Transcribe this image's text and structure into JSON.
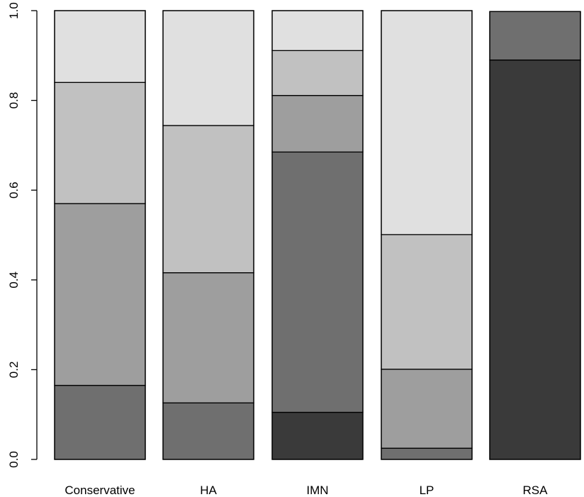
{
  "chart_data": {
    "type": "bar",
    "stacked": true,
    "categories": [
      "Conservative",
      "HA",
      "IMN",
      "LP",
      "RSA"
    ],
    "ylim": [
      0,
      1.0
    ],
    "yticks": [
      "0.0",
      "0.2",
      "0.4",
      "0.6",
      "0.8",
      "1.0"
    ],
    "ytick_values": [
      0.0,
      0.2,
      0.4,
      0.6,
      0.8,
      1.0
    ],
    "grid": false,
    "legend": "none",
    "segment_colors": [
      "#3a3a3a",
      "#6f6f6f",
      "#9e9e9e",
      "#c1c1c1",
      "#e0e0e0"
    ],
    "series": [
      {
        "values": [
          0.0,
          0.0,
          0.105,
          0.0,
          0.89
        ]
      },
      {
        "values": [
          0.165,
          0.126,
          0.58,
          0.025,
          0.108
        ]
      },
      {
        "values": [
          0.405,
          0.29,
          0.126,
          0.176,
          0.0
        ]
      },
      {
        "values": [
          0.27,
          0.328,
          0.1,
          0.3,
          0.0
        ]
      },
      {
        "values": [
          0.16,
          0.256,
          0.089,
          0.499,
          0.0
        ]
      }
    ]
  }
}
